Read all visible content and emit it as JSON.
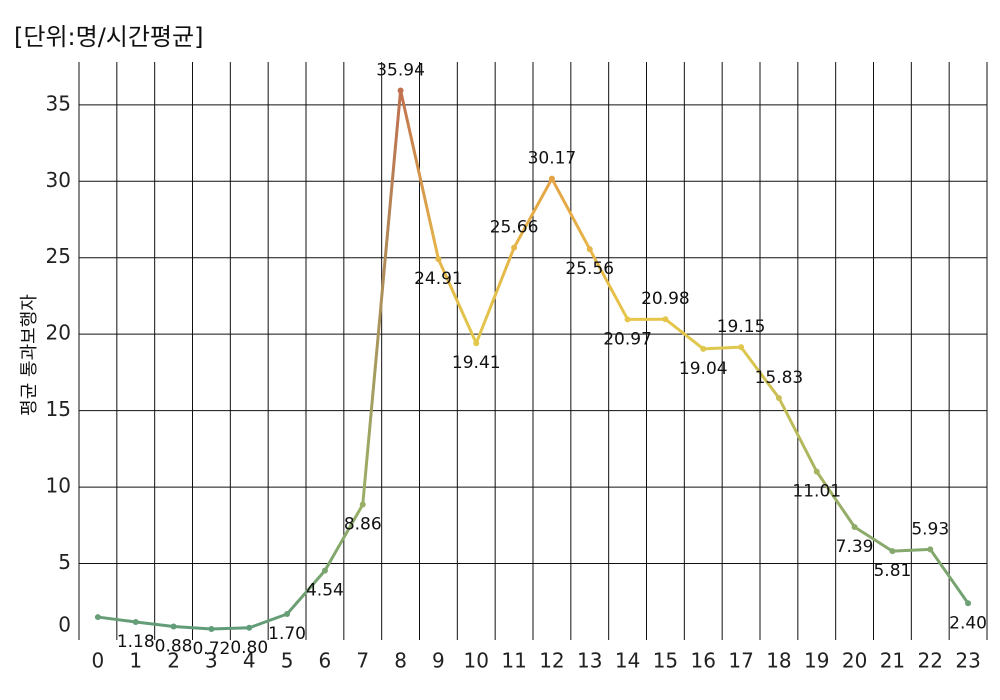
{
  "chart_data": {
    "type": "line",
    "title": "[단위:명/시간평균]",
    "y_label": "평균 통과보행자",
    "categories": [
      "0",
      "1",
      "2",
      "3",
      "4",
      "5",
      "6",
      "7",
      "8",
      "9",
      "10",
      "11",
      "12",
      "13",
      "14",
      "15",
      "16",
      "17",
      "18",
      "19",
      "20",
      "21",
      "22",
      "23"
    ],
    "values": [
      1.5,
      1.18,
      0.88,
      0.72,
      0.8,
      1.7,
      4.54,
      8.86,
      35.94,
      24.91,
      19.41,
      25.66,
      30.17,
      25.56,
      20.97,
      20.98,
      19.04,
      19.15,
      15.83,
      11.01,
      7.39,
      5.81,
      5.93,
      2.4
    ],
    "value_labels": [
      null,
      "1.18",
      "0.88",
      "0.72",
      "0.80",
      "1.70",
      "4.54",
      "8.86",
      "35.94",
      "24.91",
      "19.41",
      "25.66",
      "30.17",
      "25.56",
      "20.97",
      "20.98",
      "19.04",
      "19.15",
      "15.83",
      "11.01",
      "7.39",
      "5.81",
      "5.93",
      "2.40"
    ],
    "color_scale": [
      {
        "value": 0,
        "color": "#5c9a7a"
      },
      {
        "value": 20,
        "color": "#e6c94c"
      },
      {
        "value": 30,
        "color": "#e6a545"
      },
      {
        "value": 36,
        "color": "#c0704f"
      }
    ],
    "ylim": [
      0,
      37.8
    ],
    "yticks": [
      0,
      5,
      10,
      15,
      20,
      25,
      30,
      35
    ],
    "grid": true
  }
}
